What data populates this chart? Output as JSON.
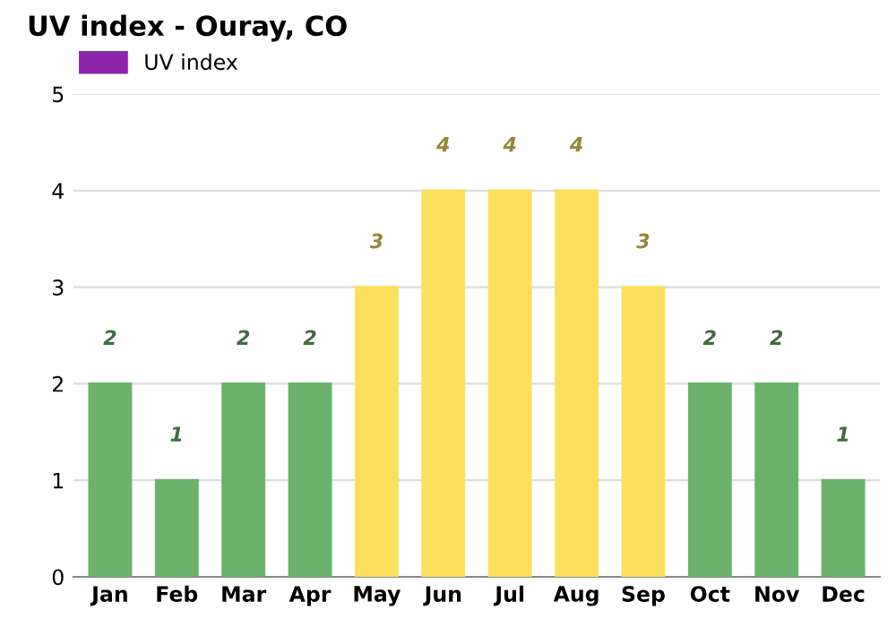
{
  "chart_data": {
    "type": "bar",
    "title": "UV index - Ouray, CO",
    "categories": [
      "Jan",
      "Feb",
      "Mar",
      "Apr",
      "May",
      "Jun",
      "Jul",
      "Aug",
      "Sep",
      "Oct",
      "Nov",
      "Dec"
    ],
    "series": [
      {
        "name": "UV index",
        "color": "#8e24aa",
        "values": [
          2,
          1,
          2,
          2,
          3,
          4,
          4,
          4,
          3,
          2,
          2,
          1
        ],
        "colors": [
          "#6ab26a",
          "#6ab26a",
          "#6ab26a",
          "#6ab26a",
          "#fddf5e",
          "#fddf5e",
          "#fddf5e",
          "#fddf5e",
          "#fddf5e",
          "#6ab26a",
          "#6ab26a",
          "#6ab26a"
        ]
      }
    ],
    "ylim": [
      0,
      5
    ],
    "yticks": [
      0,
      1,
      2,
      3,
      4,
      5
    ],
    "grid": "y",
    "legend": "top left",
    "data_labels": true
  }
}
